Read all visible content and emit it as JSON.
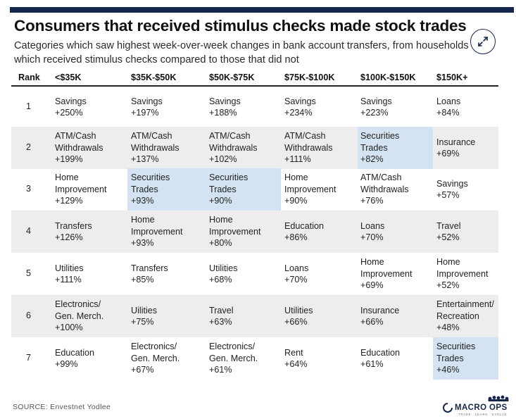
{
  "chart_data": {
    "type": "table",
    "title": "Consumers that received stimulus checks made stock trades",
    "subtitle": "Categories which saw highest week-over-week changes in bank account transfers, from households which received stimulus checks compared to those that did not",
    "columns": [
      "Rank",
      "<$35K",
      "$35K-$50K",
      "$50K-$75K",
      "$75K-$100K",
      "$100K-$150K",
      "$150K+"
    ],
    "rows": [
      {
        "rank": "1",
        "cells": [
          [
            "Savings",
            "+250%"
          ],
          [
            "Savings",
            "+197%"
          ],
          [
            "Savings",
            "+188%"
          ],
          [
            "Savings",
            "+234%"
          ],
          [
            "Savings",
            "+223%"
          ],
          [
            "Loans",
            "+84%"
          ]
        ]
      },
      {
        "rank": "2",
        "cells": [
          [
            "ATM/Cash",
            "Withdrawals",
            "+199%"
          ],
          [
            "ATM/Cash",
            "Withdrawals",
            "+137%"
          ],
          [
            "ATM/Cash",
            "Withdrawals",
            "+102%"
          ],
          [
            "ATM/Cash",
            "Withdrawals",
            "+111%"
          ],
          [
            "Securities",
            "Trades",
            "+82%"
          ],
          [
            "Insurance",
            "+69%"
          ]
        ]
      },
      {
        "rank": "3",
        "cells": [
          [
            "Home",
            "Improvement",
            "+129%"
          ],
          [
            "Securities",
            "Trades",
            "+93%"
          ],
          [
            "Securities",
            "Trades",
            "+90%"
          ],
          [
            "Home",
            "Improvement",
            "+90%"
          ],
          [
            "ATM/Cash",
            "Withdrawals",
            "+76%"
          ],
          [
            "Savings",
            "+57%"
          ]
        ]
      },
      {
        "rank": "4",
        "cells": [
          [
            "Transfers",
            "+126%"
          ],
          [
            "Home",
            "Improvement",
            "+93%"
          ],
          [
            "Home",
            "Improvement",
            "+80%"
          ],
          [
            "Education",
            "+86%"
          ],
          [
            "Loans",
            "+70%"
          ],
          [
            "Travel",
            "+52%"
          ]
        ]
      },
      {
        "rank": "5",
        "cells": [
          [
            "Utilities",
            "+111%"
          ],
          [
            "Transfers",
            "+85%"
          ],
          [
            "Utilities",
            "+68%"
          ],
          [
            "Loans",
            "+70%"
          ],
          [
            "Home",
            "Improvement",
            "+69%"
          ],
          [
            "Home",
            "Improvement",
            "+52%"
          ]
        ]
      },
      {
        "rank": "6",
        "cells": [
          [
            "Electronics/",
            "Gen. Merch.",
            "+100%"
          ],
          [
            "Uilities",
            "+75%"
          ],
          [
            "Travel",
            "+63%"
          ],
          [
            "Utilities",
            "+66%"
          ],
          [
            "Insurance",
            "+66%"
          ],
          [
            "Entertainment/",
            "Recreation",
            "+48%"
          ]
        ]
      },
      {
        "rank": "7",
        "cells": [
          [
            "Education",
            "+99%"
          ],
          [
            "Electronics/",
            "Gen. Merch.",
            "+67%"
          ],
          [
            "Electronics/",
            "Gen. Merch.",
            "+61%"
          ],
          [
            "Rent",
            "+64%"
          ],
          [
            "Education",
            "+61%"
          ],
          [
            "Securities",
            "Trades",
            "+46%"
          ]
        ]
      }
    ],
    "highlighted_label": "Securities Trades"
  },
  "colors": {
    "header_bar": "#14264a",
    "gray_row": "#ededed",
    "highlight": "#d4e3f2"
  },
  "source": "SOURCE: Envestnet Yodlee",
  "logo": {
    "name": "MACRO OPS",
    "tagline": "TRADE · LEARN · EVOLVE",
    "icon": "macro-ops-logo-icon"
  },
  "expand_icon": "expand-arrows-icon"
}
